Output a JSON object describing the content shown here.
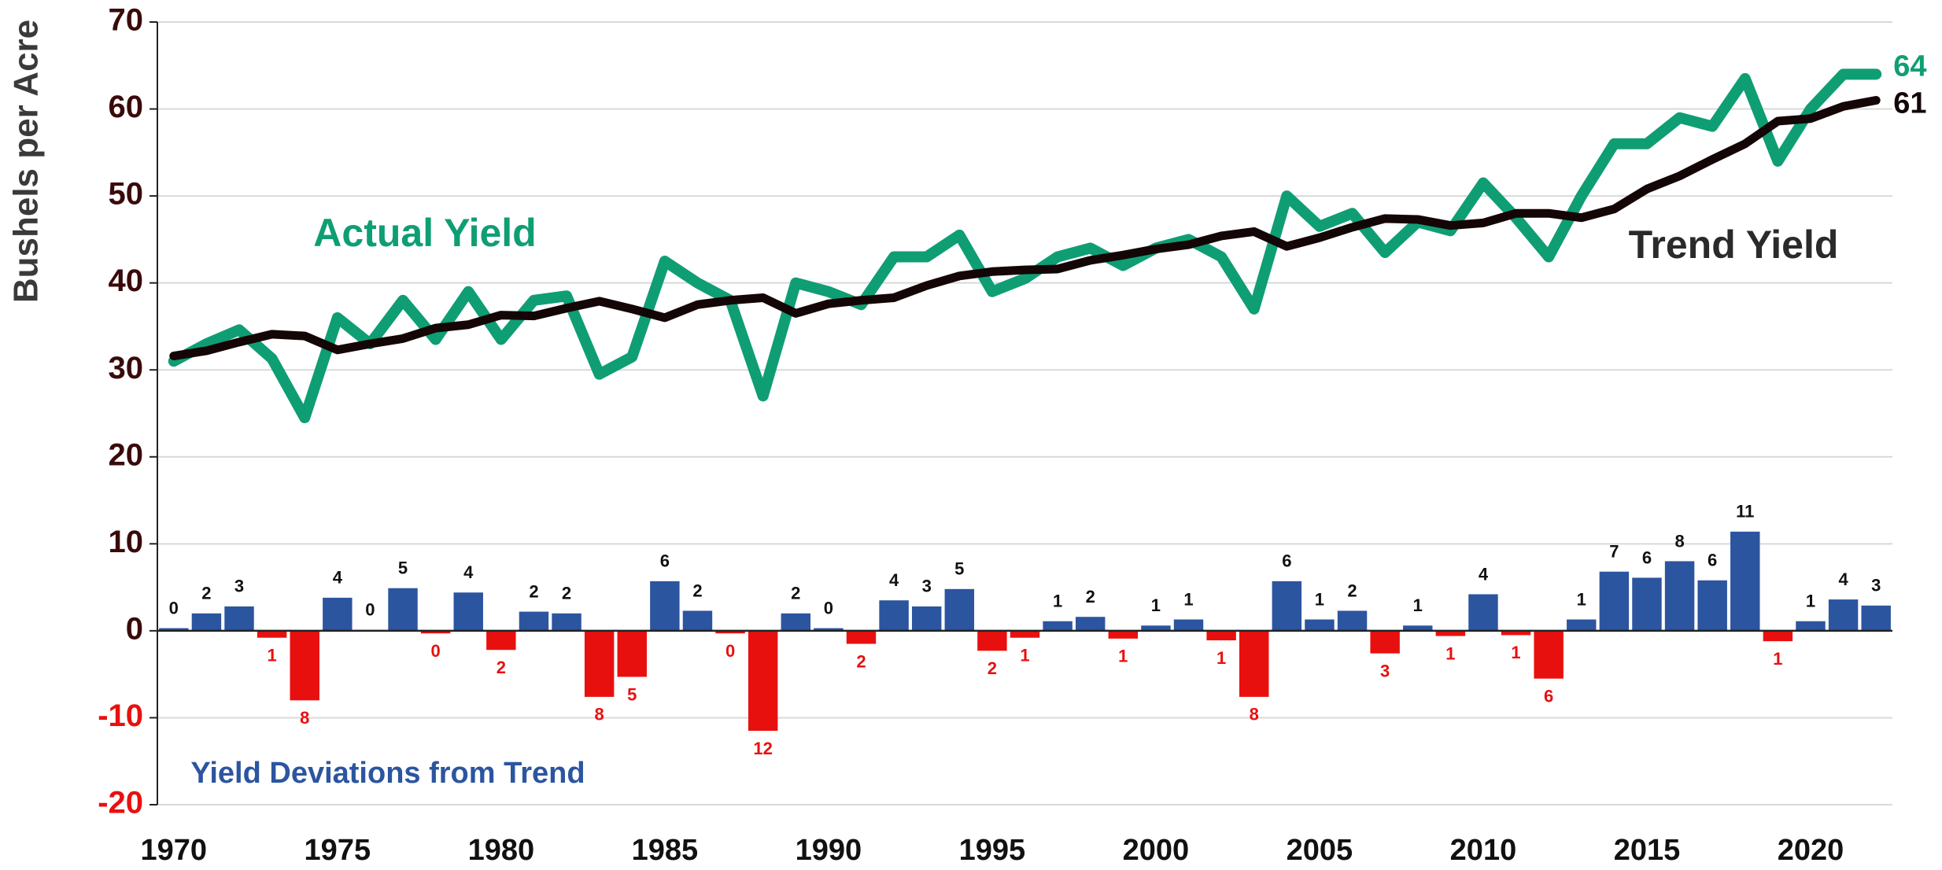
{
  "chart_data": {
    "type": "combo",
    "ylabel": "Bushels per Acre",
    "x": [
      1970,
      1971,
      1972,
      1973,
      1974,
      1975,
      1976,
      1977,
      1978,
      1979,
      1980,
      1981,
      1982,
      1983,
      1984,
      1985,
      1986,
      1987,
      1988,
      1989,
      1990,
      1991,
      1992,
      1993,
      1994,
      1995,
      1996,
      1997,
      1998,
      1999,
      2000,
      2001,
      2002,
      2003,
      2004,
      2005,
      2006,
      2007,
      2008,
      2009,
      2010,
      2011,
      2012,
      2013,
      2014,
      2015,
      2016,
      2017,
      2018,
      2019,
      2020,
      2021,
      2022
    ],
    "xlim": [
      1969.5,
      2022.5
    ],
    "xticks": [
      1970,
      1975,
      1980,
      1985,
      1990,
      1995,
      2000,
      2005,
      2010,
      2015,
      2020
    ],
    "ylim": [
      -20,
      70
    ],
    "yticks": [
      -20,
      -10,
      0,
      10,
      20,
      30,
      40,
      50,
      60,
      70
    ],
    "grid": true,
    "series": [
      {
        "name": "Actual Yield",
        "type": "line",
        "color": "#0f9e74",
        "values": [
          31,
          33,
          34.6,
          31.3,
          24.5,
          36,
          33,
          38,
          33.5,
          39,
          33.5,
          38,
          38.5,
          29.5,
          31.5,
          42.5,
          40,
          38,
          27,
          40,
          39,
          37.5,
          43,
          43,
          45.5,
          39,
          40.5,
          43,
          44,
          42,
          44,
          45,
          43,
          37,
          50,
          46.5,
          48,
          43.5,
          47,
          46,
          51.5,
          47.5,
          43,
          50,
          56,
          56,
          59,
          58,
          63.5,
          54,
          60,
          64,
          64
        ]
      },
      {
        "name": "Trend Yield",
        "type": "line",
        "color": "#140606",
        "values": [
          31.6,
          32.2,
          33.2,
          34.1,
          33.9,
          32.3,
          33,
          33.6,
          34.8,
          35.2,
          36.3,
          36.2,
          37.1,
          37.9,
          37,
          36,
          37.5,
          38,
          38.3,
          36.5,
          37.6,
          38,
          38.3,
          39.7,
          40.8,
          41.3,
          41.5,
          41.6,
          42.6,
          43.2,
          43.9,
          44.4,
          45.4,
          45.9,
          44.2,
          45.2,
          46.4,
          47.4,
          47.3,
          46.6,
          46.9,
          48,
          48,
          47.5,
          48.5,
          50.8,
          52.3,
          54.2,
          56,
          58.6,
          58.9,
          60.3,
          61
        ]
      },
      {
        "name": "Yield Deviations from Trend",
        "type": "bar",
        "color": "#2c55a0",
        "negative_color": "#e8100f",
        "values": [
          0.3,
          2,
          2.8,
          -0.8,
          -8,
          3.8,
          0.1,
          4.9,
          -0.3,
          4.4,
          -2.2,
          2.2,
          2,
          -7.6,
          -5.3,
          5.7,
          2.3,
          -0.3,
          -11.5,
          2,
          0.3,
          -1.5,
          3.5,
          2.8,
          4.8,
          -2.3,
          -0.8,
          1.1,
          1.6,
          -0.9,
          0.6,
          1.3,
          -1.1,
          -7.6,
          5.7,
          1.3,
          2.3,
          -2.6,
          0.6,
          -0.6,
          4.2,
          -0.5,
          -5.5,
          1.3,
          6.8,
          6.1,
          8,
          5.8,
          11.4,
          -1.2,
          1.1,
          3.6,
          2.9
        ],
        "value_labels": [
          "0",
          "2",
          "3",
          "1",
          "8",
          "4",
          "0",
          "5",
          "0",
          "4",
          "2",
          "2",
          "2",
          "8",
          "5",
          "6",
          "2",
          "0",
          "12",
          "2",
          "0",
          "2",
          "4",
          "3",
          "5",
          "2",
          "1",
          "1",
          "2",
          "1",
          "1",
          "1",
          "1",
          "8",
          "6",
          "1",
          "2",
          "3",
          "1",
          "1",
          "4",
          "1",
          "6",
          "1",
          "7",
          "6",
          "8",
          "6",
          "11",
          "1",
          "1",
          "4",
          "3"
        ]
      }
    ]
  }
}
